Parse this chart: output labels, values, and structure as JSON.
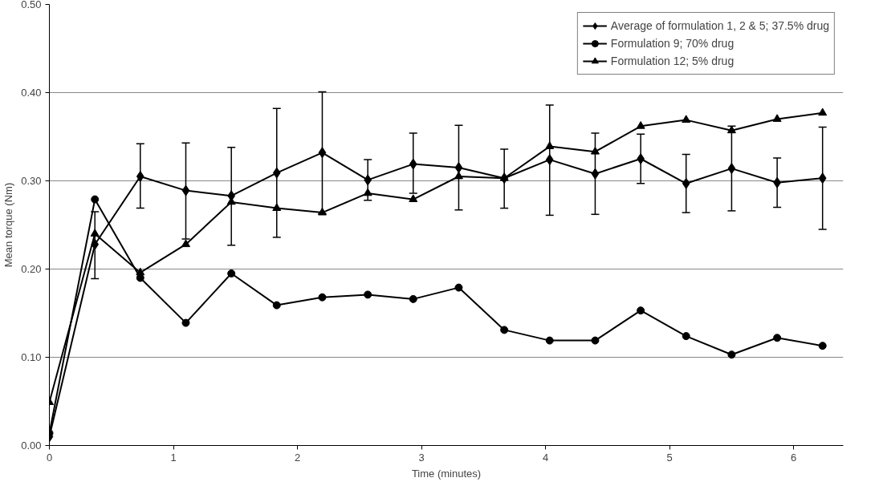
{
  "chart_data": {
    "type": "line",
    "xlabel": "Time (minutes)",
    "ylabel": "Mean torque (Nm)",
    "x": [
      0,
      0.367,
      0.733,
      1.1,
      1.467,
      1.833,
      2.2,
      2.567,
      2.933,
      3.3,
      3.667,
      4.033,
      4.4,
      4.767,
      5.133,
      5.5,
      5.867,
      6.233
    ],
    "series": [
      {
        "name": "Average of formulation 1, 2 & 5; 37.5% drug",
        "color": "#000000",
        "marker": "diamond",
        "values": [
          0.01,
          0.228,
          0.305,
          0.289,
          0.283,
          0.309,
          0.332,
          0.301,
          0.319,
          0.315,
          0.303,
          0.324,
          0.308,
          0.325,
          0.297,
          0.314,
          0.298,
          0.303
        ],
        "errors": [
          null,
          [
            0.189,
            0.265
          ],
          [
            0.269,
            0.342
          ],
          [
            0.234,
            0.343
          ],
          [
            0.227,
            0.338
          ],
          [
            0.236,
            0.382
          ],
          [
            0.263,
            0.401
          ],
          [
            0.278,
            0.324
          ],
          [
            0.286,
            0.354
          ],
          [
            0.267,
            0.363
          ],
          [
            0.269,
            0.336
          ],
          [
            0.261,
            0.386
          ],
          [
            0.262,
            0.354
          ],
          [
            0.297,
            0.353
          ],
          [
            0.264,
            0.33
          ],
          [
            0.266,
            0.362
          ],
          [
            0.27,
            0.326
          ],
          [
            0.245,
            0.361
          ]
        ]
      },
      {
        "name": "Formulation 9; 70% drug",
        "color": "#000000",
        "marker": "circle",
        "values": [
          0.014,
          0.279,
          0.19,
          0.139,
          0.195,
          0.159,
          0.168,
          0.171,
          0.166,
          0.179,
          0.131,
          0.119,
          0.119,
          0.153,
          0.124,
          0.103,
          0.122,
          0.113
        ]
      },
      {
        "name": "Formulation 12; 5% drug",
        "color": "#000000",
        "marker": "triangle",
        "values": [
          0.049,
          0.24,
          0.196,
          0.228,
          0.276,
          0.269,
          0.264,
          0.286,
          0.279,
          0.305,
          0.303,
          0.339,
          0.333,
          0.362,
          0.369,
          0.357,
          0.37,
          0.377
        ]
      }
    ],
    "xlim": [
      0,
      6.4
    ],
    "ylim": [
      0,
      0.5
    ],
    "xticks": [
      0,
      1,
      2,
      3,
      4,
      5,
      6
    ],
    "yticks": [
      {
        "value": 0,
        "label": "0.00"
      },
      {
        "value": 0.1,
        "label": "0.10"
      },
      {
        "value": 0.2,
        "label": "0.20"
      },
      {
        "value": 0.3,
        "label": "0.30"
      },
      {
        "value": 0.4,
        "label": "0.40"
      },
      {
        "value": 0.5,
        "label": "0.50"
      }
    ],
    "grid": "y",
    "legend": "top right",
    "line_style": "solid"
  }
}
